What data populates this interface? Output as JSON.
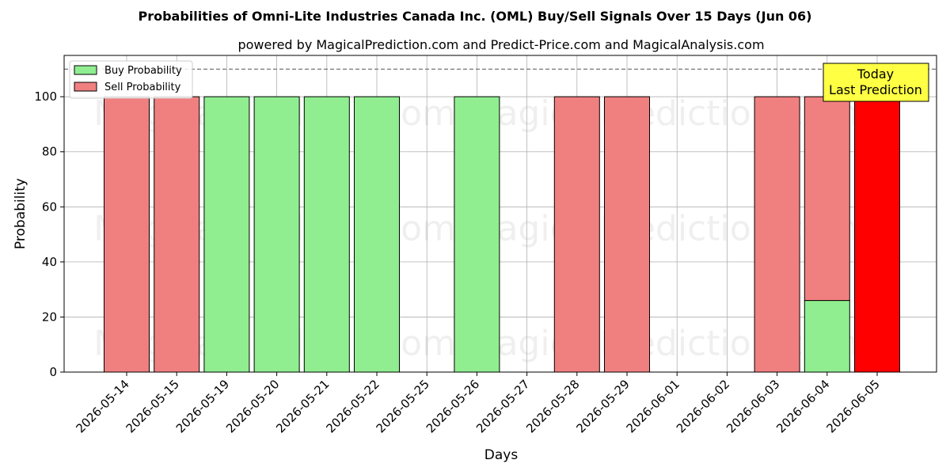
{
  "chart_data": {
    "type": "bar",
    "title": "Probabilities of Omni-Lite Industries Canada Inc. (OML) Buy/Sell Signals Over 15 Days (Jun 06)",
    "subtitle": "powered by MagicalPrediction.com and Predict-Price.com and MagicalAnalysis.com",
    "xlabel": "Days",
    "ylabel": "Probability",
    "ylim": [
      0,
      115
    ],
    "yticks": [
      0,
      20,
      40,
      60,
      80,
      100
    ],
    "reference_line": 110,
    "grid": true,
    "legend_position": "top-left",
    "categories": [
      "2026-05-14",
      "2026-05-15",
      "2026-05-19",
      "2026-05-20",
      "2026-05-21",
      "2026-05-22",
      "2026-05-25",
      "2026-05-26",
      "2026-05-27",
      "2026-05-28",
      "2026-05-29",
      "2026-06-01",
      "2026-06-02",
      "2026-06-03",
      "2026-06-04",
      "2026-06-05"
    ],
    "series": [
      {
        "name": "Buy Probability",
        "color": "#90ee90",
        "values": [
          0,
          0,
          100,
          100,
          100,
          100,
          0,
          100,
          0,
          0,
          0,
          0,
          0,
          0,
          26,
          0
        ]
      },
      {
        "name": "Sell Probability",
        "color": "#f08080",
        "values": [
          100,
          100,
          0,
          0,
          0,
          0,
          0,
          0,
          0,
          100,
          100,
          0,
          0,
          100,
          74,
          100
        ]
      }
    ],
    "highlight": {
      "index": 15,
      "color": "#ff0000"
    },
    "annotation": {
      "lines": [
        "Today",
        "Last Prediction"
      ],
      "background": "#ffff44"
    },
    "watermarks": [
      "MagicalAnalysis.com",
      "MagicalPrediction.com"
    ]
  }
}
